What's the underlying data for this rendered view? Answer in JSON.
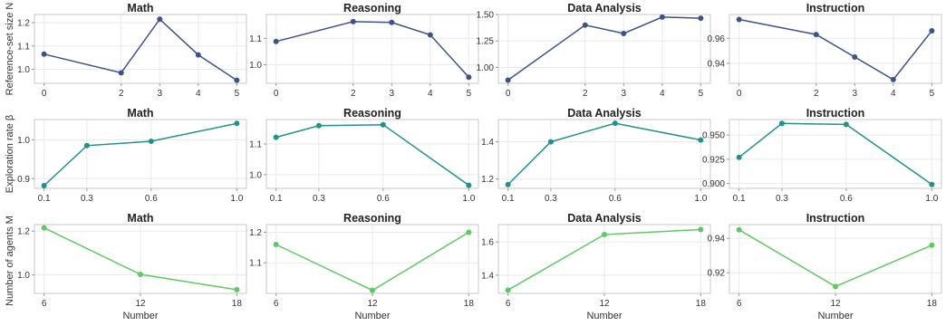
{
  "row_labels": [
    "Reference-set size N",
    "Exploration rate β",
    "Number of agents M"
  ],
  "colors": [
    "#3b528b",
    "#21918c",
    "#5ec962"
  ],
  "chart_data": [
    {
      "type": "line",
      "row": 0,
      "col": 0,
      "title": "Math",
      "xlabel": "",
      "ylabel": "Reference-set size N",
      "x": [
        0,
        2,
        3,
        4,
        5
      ],
      "xticks": [
        0,
        2,
        3,
        4,
        5
      ],
      "xtick_labels": [
        "0",
        "2",
        "3",
        "4",
        "5"
      ],
      "xlim": [
        -0.25,
        5.25
      ],
      "ylim": [
        0.94,
        1.235
      ],
      "yticks": [
        1.0,
        1.1,
        1.2
      ],
      "ytick_labels": [
        "1.0",
        "1.1",
        "1.2"
      ],
      "y": [
        1.065,
        0.985,
        1.215,
        1.062,
        0.953
      ]
    },
    {
      "type": "line",
      "row": 0,
      "col": 1,
      "title": "Reasoning",
      "xlabel": "",
      "ylabel": "",
      "x": [
        0,
        2,
        3,
        4,
        5
      ],
      "xticks": [
        0,
        2,
        3,
        4,
        5
      ],
      "xtick_labels": [
        "0",
        "2",
        "3",
        "4",
        "5"
      ],
      "xlim": [
        -0.25,
        5.25
      ],
      "ylim": [
        0.93,
        1.19
      ],
      "yticks": [
        1.0,
        1.1
      ],
      "ytick_labels": [
        "1.0",
        "1.1"
      ],
      "y": [
        1.088,
        1.163,
        1.16,
        1.113,
        0.953
      ]
    },
    {
      "type": "line",
      "row": 0,
      "col": 2,
      "title": "Data Analysis",
      "xlabel": "",
      "ylabel": "",
      "x": [
        0,
        2,
        3,
        4,
        5
      ],
      "xticks": [
        0,
        2,
        3,
        4,
        5
      ],
      "xtick_labels": [
        "0",
        "2",
        "3",
        "4",
        "5"
      ],
      "xlim": [
        -0.25,
        5.25
      ],
      "ylim": [
        0.85,
        1.5
      ],
      "yticks": [
        1.0,
        1.25,
        1.5
      ],
      "ytick_labels": [
        "1.00",
        "1.25",
        "1.50"
      ],
      "y": [
        0.88,
        1.4,
        1.32,
        1.475,
        1.465
      ]
    },
    {
      "type": "line",
      "row": 0,
      "col": 3,
      "title": "Instruction",
      "xlabel": "",
      "ylabel": "",
      "x": [
        0,
        2,
        3,
        4,
        5
      ],
      "xticks": [
        0,
        2,
        3,
        4,
        5
      ],
      "xtick_labels": [
        "0",
        "2",
        "3",
        "4",
        "5"
      ],
      "xlim": [
        -0.25,
        5.25
      ],
      "ylim": [
        0.924,
        0.979
      ],
      "yticks": [
        0.94,
        0.96
      ],
      "ytick_labels": [
        "0.94",
        "0.96"
      ],
      "y": [
        0.975,
        0.963,
        0.945,
        0.927,
        0.966
      ]
    },
    {
      "type": "line",
      "row": 1,
      "col": 0,
      "title": "Math",
      "xlabel": "",
      "ylabel": "Exploration rate β",
      "x": [
        0.1,
        0.3,
        0.6,
        1.0
      ],
      "xticks": [
        0.1,
        0.3,
        0.6,
        1.0
      ],
      "xtick_labels": [
        "0.1",
        "0.3",
        "0.6",
        "1.0"
      ],
      "xlim": [
        0.055,
        1.045
      ],
      "ylim": [
        0.875,
        1.052
      ],
      "yticks": [
        0.9,
        1.0
      ],
      "ytick_labels": [
        "0.9",
        "1.0"
      ],
      "y": [
        0.882,
        0.985,
        0.996,
        1.042
      ]
    },
    {
      "type": "line",
      "row": 1,
      "col": 1,
      "title": "Reasoning",
      "xlabel": "",
      "ylabel": "",
      "x": [
        0.1,
        0.3,
        0.6,
        1.0
      ],
      "xticks": [
        0.1,
        0.3,
        0.6,
        1.0
      ],
      "xtick_labels": [
        "0.1",
        "0.3",
        "0.6",
        "1.0"
      ],
      "xlim": [
        0.055,
        1.045
      ],
      "ylim": [
        0.955,
        1.18
      ],
      "yticks": [
        1.0,
        1.1
      ],
      "ytick_labels": [
        "1.0",
        "1.1"
      ],
      "y": [
        1.122,
        1.16,
        1.163,
        0.965
      ]
    },
    {
      "type": "line",
      "row": 1,
      "col": 2,
      "title": "Data Analysis",
      "xlabel": "",
      "ylabel": "",
      "x": [
        0.1,
        0.3,
        0.6,
        1.0
      ],
      "xticks": [
        0.1,
        0.3,
        0.6,
        1.0
      ],
      "xtick_labels": [
        "0.1",
        "0.3",
        "0.6",
        "1.0"
      ],
      "xlim": [
        0.055,
        1.045
      ],
      "ylim": [
        1.15,
        1.52
      ],
      "yticks": [
        1.2,
        1.4
      ],
      "ytick_labels": [
        "1.2",
        "1.4"
      ],
      "y": [
        1.17,
        1.4,
        1.5,
        1.41
      ]
    },
    {
      "type": "line",
      "row": 1,
      "col": 3,
      "title": "Instruction",
      "xlabel": "",
      "ylabel": "",
      "x": [
        0.1,
        0.3,
        0.6,
        1.0
      ],
      "xticks": [
        0.1,
        0.3,
        0.6,
        1.0
      ],
      "xtick_labels": [
        "0.1",
        "0.3",
        "0.6",
        "1.0"
      ],
      "xlim": [
        0.055,
        1.045
      ],
      "ylim": [
        0.895,
        0.966
      ],
      "yticks": [
        0.9,
        0.925,
        0.95
      ],
      "ytick_labels": [
        "0.900",
        "0.925",
        "0.950"
      ],
      "y": [
        0.927,
        0.962,
        0.961,
        0.899
      ]
    },
    {
      "type": "line",
      "row": 2,
      "col": 0,
      "title": "Math",
      "xlabel": "Number",
      "ylabel": "Number of agents M",
      "x": [
        6,
        12,
        18
      ],
      "xticks": [
        6,
        12,
        18
      ],
      "xtick_labels": [
        "6",
        "12",
        "18"
      ],
      "xlim": [
        5.4,
        18.6
      ],
      "ylim": [
        0.915,
        1.23
      ],
      "yticks": [
        1.0,
        1.2
      ],
      "ytick_labels": [
        "1.0",
        "1.2"
      ],
      "y": [
        1.215,
        1.002,
        0.932
      ]
    },
    {
      "type": "line",
      "row": 2,
      "col": 1,
      "title": "Reasoning",
      "xlabel": "Number",
      "ylabel": "",
      "x": [
        6,
        12,
        18
      ],
      "xticks": [
        6,
        12,
        18
      ],
      "xtick_labels": [
        "6",
        "12",
        "18"
      ],
      "xlim": [
        5.4,
        18.6
      ],
      "ylim": [
        1.0,
        1.225
      ],
      "yticks": [
        1.1,
        1.2
      ],
      "ytick_labels": [
        "1.1",
        "1.2"
      ],
      "y": [
        1.16,
        1.01,
        1.2
      ]
    },
    {
      "type": "line",
      "row": 2,
      "col": 2,
      "title": "Data Analysis",
      "xlabel": "Number",
      "ylabel": "",
      "x": [
        6,
        12,
        18
      ],
      "xticks": [
        6,
        12,
        18
      ],
      "xtick_labels": [
        "6",
        "12",
        "18"
      ],
      "xlim": [
        5.4,
        18.6
      ],
      "ylim": [
        1.29,
        1.705
      ],
      "yticks": [
        1.4,
        1.6
      ],
      "ytick_labels": [
        "1.4",
        "1.6"
      ],
      "y": [
        1.31,
        1.645,
        1.675
      ]
    },
    {
      "type": "line",
      "row": 2,
      "col": 3,
      "title": "Instruction",
      "xlabel": "Number",
      "ylabel": "",
      "x": [
        6,
        12,
        18
      ],
      "xticks": [
        6,
        12,
        18
      ],
      "xtick_labels": [
        "6",
        "12",
        "18"
      ],
      "xlim": [
        5.4,
        18.6
      ],
      "ylim": [
        0.908,
        0.948
      ],
      "yticks": [
        0.92,
        0.94
      ],
      "ytick_labels": [
        "0.92",
        "0.94"
      ],
      "y": [
        0.945,
        0.912,
        0.936
      ]
    }
  ]
}
